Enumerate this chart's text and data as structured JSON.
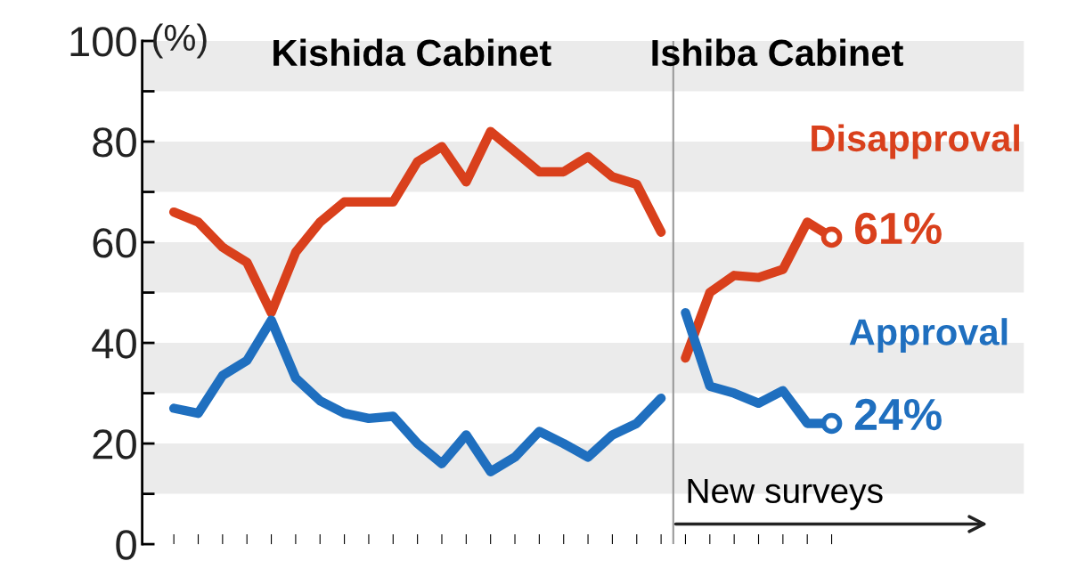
{
  "chart_data": {
    "type": "line",
    "ylabel": "(%)",
    "categories": [
      null,
      null,
      null,
      null,
      null,
      null,
      null,
      null,
      null,
      null,
      null,
      null,
      null,
      null,
      null,
      null,
      null,
      null,
      null,
      null,
      null,
      null,
      null,
      null,
      null,
      null,
      null,
      null
    ],
    "series": [
      {
        "color": "#d9401c",
        "values": [
          66,
          64,
          59,
          56,
          46,
          58,
          64,
          68,
          68,
          68,
          76,
          79,
          72,
          82,
          78,
          74,
          74,
          77,
          73,
          71.5,
          62,
          null,
          null,
          null,
          null,
          null,
          null,
          null
        ]
      },
      {
        "color": "#1f6fbf",
        "values": [
          27,
          26,
          33.5,
          36.5,
          44.5,
          33,
          28.5,
          26,
          25,
          25.4,
          20,
          16,
          21.7,
          14.4,
          17.3,
          22.4,
          20,
          17.3,
          21.7,
          24,
          29,
          null,
          null,
          null,
          null,
          null,
          null,
          null
        ]
      },
      {
        "name": "Disapproval",
        "color": "#d9401c",
        "values": [
          null,
          null,
          null,
          null,
          null,
          null,
          null,
          null,
          null,
          null,
          null,
          null,
          null,
          null,
          null,
          null,
          null,
          null,
          null,
          null,
          null,
          37,
          50,
          53.4,
          53,
          54.6,
          64,
          61
        ],
        "value_labels": [
          null,
          null,
          null,
          null,
          null,
          null,
          null,
          null,
          null,
          null,
          null,
          null,
          null,
          null,
          null,
          null,
          null,
          null,
          null,
          null,
          null,
          null,
          null,
          null,
          null,
          null,
          null,
          "61%"
        ]
      },
      {
        "name": "Approval",
        "color": "#1f6fbf",
        "values": [
          null,
          null,
          null,
          null,
          null,
          null,
          null,
          null,
          null,
          null,
          null,
          null,
          null,
          null,
          null,
          null,
          null,
          null,
          null,
          null,
          null,
          46,
          31.4,
          30,
          28,
          30.5,
          24,
          24
        ],
        "value_labels": [
          null,
          null,
          null,
          null,
          null,
          null,
          null,
          null,
          null,
          null,
          null,
          null,
          null,
          null,
          null,
          null,
          null,
          null,
          null,
          null,
          null,
          null,
          null,
          null,
          null,
          null,
          null,
          "24%"
        ]
      }
    ],
    "ylim": [
      0,
      100
    ],
    "yticks": [
      0,
      {
        "value": 10,
        "label": null
      },
      20,
      {
        "value": 30,
        "label": null
      },
      40,
      {
        "value": 50,
        "label": null
      },
      60,
      {
        "value": 70,
        "label": null
      },
      80,
      {
        "value": 90,
        "label": null
      },
      100
    ],
    "bands": [
      {
        "axis": "y",
        "from": 10,
        "to": 20,
        "color": "#ebebeb"
      },
      {
        "axis": "y",
        "from": 30,
        "to": 40,
        "color": "#ebebeb"
      },
      {
        "axis": "y",
        "from": 50,
        "to": 60,
        "color": "#ebebeb"
      },
      {
        "axis": "y",
        "from": 70,
        "to": 80,
        "color": "#ebebeb"
      },
      {
        "axis": "y",
        "from": 90,
        "to": 100,
        "color": "#ebebeb"
      }
    ],
    "annotations": [
      "Kishida Cabinet",
      "Ishiba Cabinet",
      "New surveys"
    ],
    "tick_labels": "y",
    "grid": false,
    "legend": false,
    "line_style": "solid"
  }
}
